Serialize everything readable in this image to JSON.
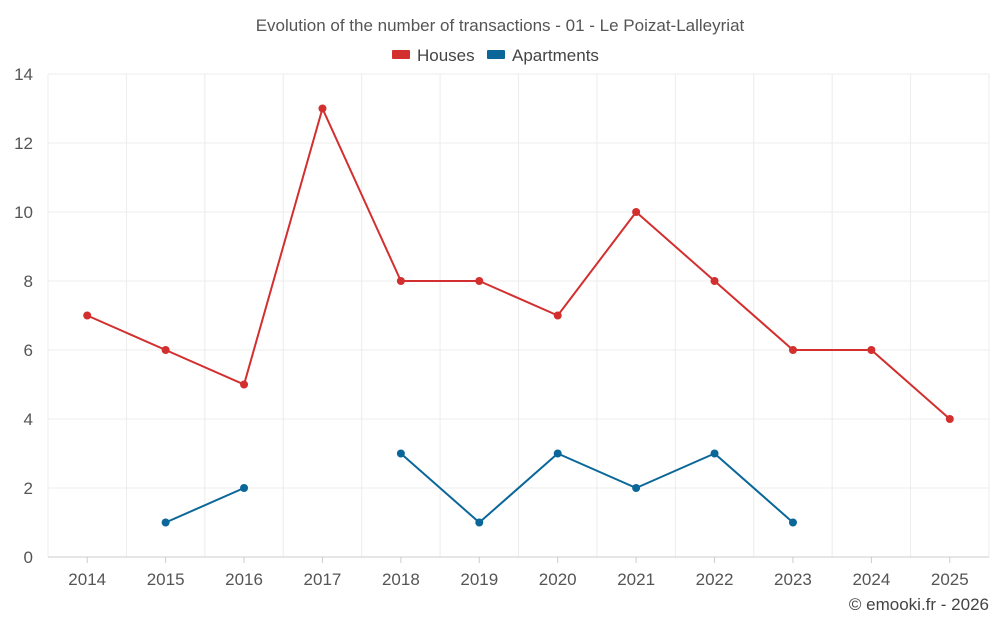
{
  "chart_data": {
    "type": "line",
    "title": "Evolution of the number of transactions - 01 - Le Poizat-Lalleyriat",
    "x": [
      "2014",
      "2015",
      "2016",
      "2017",
      "2018",
      "2019",
      "2020",
      "2021",
      "2022",
      "2023",
      "2024",
      "2025"
    ],
    "series": [
      {
        "name": "Houses",
        "color": "#d32f2f",
        "values": [
          7,
          6,
          5,
          13,
          8,
          8,
          7,
          10,
          8,
          6,
          6,
          4
        ]
      },
      {
        "name": "Apartments",
        "color": "#0b6799",
        "values": [
          null,
          1,
          2,
          null,
          3,
          1,
          3,
          2,
          3,
          1,
          null,
          null
        ]
      }
    ],
    "ylim": [
      0,
      14
    ],
    "yticks": [
      0,
      2,
      4,
      6,
      8,
      10,
      12,
      14
    ],
    "xlabel": "",
    "ylabel": "",
    "grid": true,
    "legend_position": "top-center"
  },
  "credit": "© emooki.fr - 2026"
}
